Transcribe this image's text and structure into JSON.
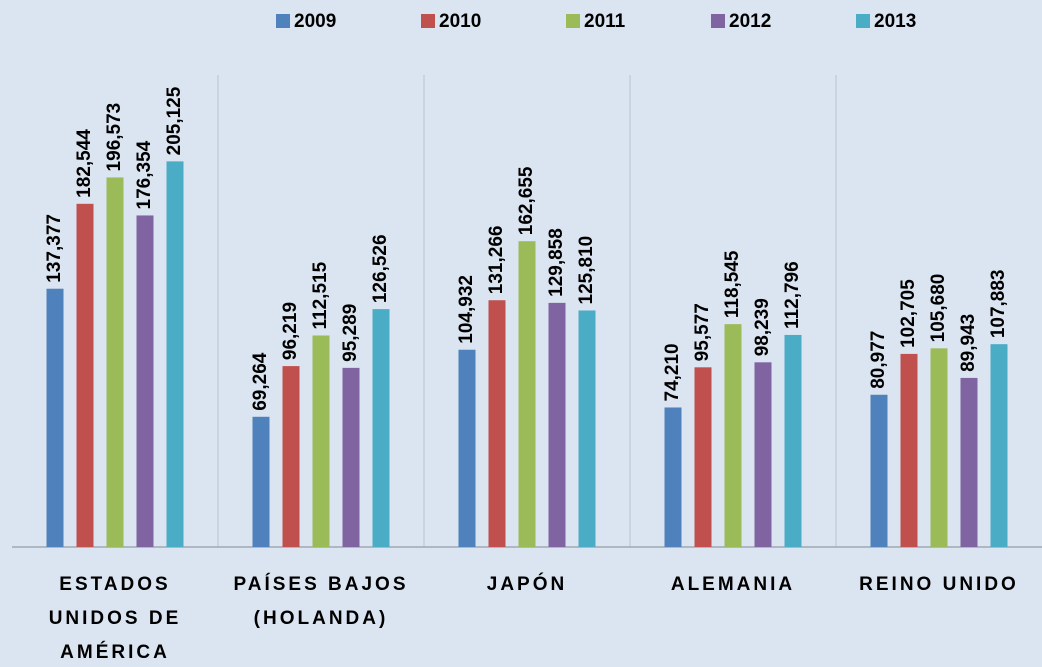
{
  "chart_data": {
    "type": "bar",
    "categories": [
      "ESTADOS UNIDOS DE AMÉRICA",
      "PAÍSES BAJOS (HOLANDA)",
      "JAPÓN",
      "ALEMANIA",
      "REINO UNIDO"
    ],
    "series": [
      {
        "name": "2009",
        "color": "#4f81bd",
        "values": [
          137377,
          69264,
          104932,
          74210,
          80977
        ],
        "value_labels": [
          "137,377",
          "69,264",
          "104,932",
          "74,210",
          "80,977"
        ]
      },
      {
        "name": "2010",
        "color": "#c0504d",
        "values": [
          182544,
          96219,
          131266,
          95577,
          102705
        ],
        "value_labels": [
          "182,544",
          "96,219",
          "131,266",
          "95,577",
          "102,705"
        ]
      },
      {
        "name": "2011",
        "color": "#9bbb59",
        "values": [
          196573,
          112515,
          162655,
          118545,
          105680
        ],
        "value_labels": [
          "196,573",
          "112,515",
          "162,655",
          "118,545",
          "105,680"
        ]
      },
      {
        "name": "2012",
        "color": "#8064a2",
        "values": [
          176354,
          95289,
          129858,
          98239,
          89943
        ],
        "value_labels": [
          "176,354",
          "95,289",
          "129,858",
          "98,239",
          "89,943"
        ]
      },
      {
        "name": "2013",
        "color": "#4bacc6",
        "values": [
          205125,
          126526,
          125810,
          112796,
          107883
        ],
        "value_labels": [
          "205,125",
          "126,526",
          "125,810",
          "112,796",
          "107,883"
        ]
      }
    ],
    "ylim": [
      0,
      250000
    ],
    "legend": "top"
  }
}
